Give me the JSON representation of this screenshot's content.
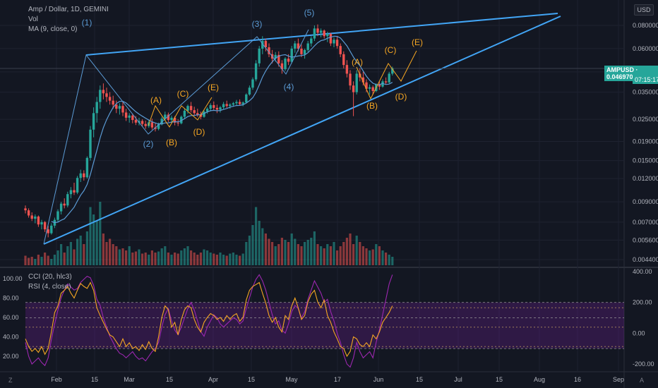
{
  "legend": {
    "main": "Amp / Dollar, 1D, GEMINI",
    "vol": "Vol",
    "ma": "MA (9, close, 0)",
    "cci": "CCI (20, hlc3)",
    "rsi": "RSI (4, close)"
  },
  "currency": "USD",
  "price_badge": {
    "symbol": "AMPUSD",
    "price": "0.046970",
    "timer": "07:15:17"
  },
  "corner_left": "Z",
  "corner_right": "A",
  "colors": {
    "bg": "#131722",
    "up": "#26a69a",
    "down": "#ef5350",
    "trendline": "#42a5f5",
    "wave_blue": "#5b9bd5",
    "wave_orange": "#f5a623",
    "ma": "#5b9bd5",
    "cci": "#9c27b0",
    "rsi": "#f5a623",
    "band": "#7b1fa2"
  },
  "chart_data": [
    {
      "type": "candlestick",
      "title": "Amp / Dollar, 1D, GEMINI",
      "y_scale": "log",
      "y_ticks": [
        "0.080000",
        "0.060000",
        "0.045000",
        "0.035000",
        "0.025000",
        "0.019000",
        "0.015000",
        "0.012000",
        "0.009000",
        "0.007000",
        "0.005600",
        "0.004400"
      ],
      "x_ticks": [
        "Feb",
        "15",
        "Mar",
        "15",
        "Apr",
        "15",
        "May",
        "17",
        "Jun",
        "15",
        "Jul",
        "15",
        "Aug",
        "16",
        "Sep"
      ],
      "last_price": 0.04697,
      "ma_period": 9,
      "ohlc": [
        [
          0.0083,
          0.0086,
          0.0078,
          0.0081
        ],
        [
          0.0081,
          0.0083,
          0.0074,
          0.0076
        ],
        [
          0.0076,
          0.0079,
          0.0071,
          0.0073
        ],
        [
          0.0073,
          0.0077,
          0.0069,
          0.0075
        ],
        [
          0.0075,
          0.0076,
          0.0066,
          0.0068
        ],
        [
          0.0068,
          0.0072,
          0.0064,
          0.007
        ],
        [
          0.007,
          0.0071,
          0.0062,
          0.0064
        ],
        [
          0.0064,
          0.0067,
          0.0058,
          0.0061
        ],
        [
          0.0061,
          0.0069,
          0.006,
          0.0067
        ],
        [
          0.0067,
          0.0074,
          0.0065,
          0.0072
        ],
        [
          0.0072,
          0.0082,
          0.007,
          0.008
        ],
        [
          0.008,
          0.009,
          0.0077,
          0.0088
        ],
        [
          0.0088,
          0.0094,
          0.0083,
          0.0086
        ],
        [
          0.0086,
          0.0102,
          0.0084,
          0.0099
        ],
        [
          0.0099,
          0.0108,
          0.0094,
          0.0104
        ],
        [
          0.0104,
          0.0114,
          0.0098,
          0.0101
        ],
        [
          0.0101,
          0.0124,
          0.0099,
          0.0121
        ],
        [
          0.0121,
          0.0134,
          0.0115,
          0.0128
        ],
        [
          0.0128,
          0.0133,
          0.0117,
          0.0122
        ],
        [
          0.0122,
          0.0158,
          0.012,
          0.0155
        ],
        [
          0.0155,
          0.023,
          0.015,
          0.022
        ],
        [
          0.022,
          0.029,
          0.02,
          0.027
        ],
        [
          0.027,
          0.033,
          0.024,
          0.031
        ],
        [
          0.031,
          0.038,
          0.0285,
          0.036
        ],
        [
          0.036,
          0.039,
          0.032,
          0.0345
        ],
        [
          0.0345,
          0.037,
          0.031,
          0.033
        ],
        [
          0.033,
          0.035,
          0.03,
          0.0315
        ],
        [
          0.0315,
          0.0335,
          0.0285,
          0.03
        ],
        [
          0.03,
          0.0315,
          0.027,
          0.0285
        ],
        [
          0.0285,
          0.0305,
          0.0265,
          0.0295
        ],
        [
          0.0295,
          0.031,
          0.026,
          0.0272
        ],
        [
          0.0272,
          0.0285,
          0.0245,
          0.0255
        ],
        [
          0.0255,
          0.027,
          0.024,
          0.0262
        ],
        [
          0.0262,
          0.0268,
          0.0238,
          0.0248
        ],
        [
          0.0248,
          0.026,
          0.0233,
          0.024
        ],
        [
          0.024,
          0.0255,
          0.0232,
          0.0245
        ],
        [
          0.0245,
          0.025,
          0.0228,
          0.0236
        ],
        [
          0.0236,
          0.0246,
          0.0222,
          0.023
        ],
        [
          0.023,
          0.0248,
          0.0225,
          0.0241
        ],
        [
          0.0241,
          0.0252,
          0.022,
          0.0226
        ],
        [
          0.0226,
          0.0238,
          0.0215,
          0.0222
        ],
        [
          0.0222,
          0.024,
          0.0218,
          0.0235
        ],
        [
          0.0235,
          0.0258,
          0.0232,
          0.0252
        ],
        [
          0.0252,
          0.0275,
          0.0245,
          0.0265
        ],
        [
          0.0265,
          0.0272,
          0.0242,
          0.0248
        ],
        [
          0.0248,
          0.0262,
          0.0238,
          0.0255
        ],
        [
          0.0255,
          0.026,
          0.0232,
          0.024
        ],
        [
          0.024,
          0.025,
          0.023,
          0.0238
        ],
        [
          0.0238,
          0.0262,
          0.0235,
          0.0258
        ],
        [
          0.0258,
          0.0285,
          0.0252,
          0.0278
        ],
        [
          0.0278,
          0.03,
          0.0268,
          0.0295
        ],
        [
          0.0295,
          0.031,
          0.0272,
          0.028
        ],
        [
          0.028,
          0.0292,
          0.0262,
          0.027
        ],
        [
          0.027,
          0.0285,
          0.0258,
          0.0265
        ],
        [
          0.0265,
          0.0275,
          0.025,
          0.0258
        ],
        [
          0.0258,
          0.028,
          0.0255,
          0.0275
        ],
        [
          0.0275,
          0.029,
          0.0268,
          0.0285
        ],
        [
          0.0285,
          0.0305,
          0.0276,
          0.0298
        ],
        [
          0.0298,
          0.0312,
          0.028,
          0.0288
        ],
        [
          0.0288,
          0.03,
          0.027,
          0.0282
        ],
        [
          0.0282,
          0.0295,
          0.0272,
          0.029
        ],
        [
          0.029,
          0.031,
          0.0283,
          0.0302
        ],
        [
          0.0302,
          0.0315,
          0.0288,
          0.0295
        ],
        [
          0.0295,
          0.0305,
          0.0285,
          0.03
        ],
        [
          0.03,
          0.031,
          0.0292,
          0.0305
        ],
        [
          0.0305,
          0.0318,
          0.0296,
          0.031
        ],
        [
          0.031,
          0.032,
          0.0298,
          0.0302
        ],
        [
          0.0302,
          0.0312,
          0.0294,
          0.0308
        ],
        [
          0.0308,
          0.0345,
          0.0305,
          0.034
        ],
        [
          0.034,
          0.038,
          0.0335,
          0.037
        ],
        [
          0.037,
          0.042,
          0.036,
          0.041
        ],
        [
          0.041,
          0.052,
          0.04,
          0.05
        ],
        [
          0.05,
          0.062,
          0.048,
          0.06
        ],
        [
          0.06,
          0.07,
          0.056,
          0.066
        ],
        [
          0.066,
          0.068,
          0.058,
          0.061
        ],
        [
          0.061,
          0.064,
          0.054,
          0.056
        ],
        [
          0.056,
          0.059,
          0.05,
          0.053
        ],
        [
          0.053,
          0.0575,
          0.051,
          0.0555
        ],
        [
          0.0555,
          0.058,
          0.048,
          0.05
        ],
        [
          0.05,
          0.052,
          0.044,
          0.0465
        ],
        [
          0.0465,
          0.054,
          0.0455,
          0.053
        ],
        [
          0.053,
          0.056,
          0.049,
          0.051
        ],
        [
          0.051,
          0.062,
          0.05,
          0.06
        ],
        [
          0.06,
          0.066,
          0.057,
          0.064
        ],
        [
          0.064,
          0.068,
          0.058,
          0.06
        ],
        [
          0.06,
          0.063,
          0.054,
          0.056
        ],
        [
          0.056,
          0.06,
          0.053,
          0.059
        ],
        [
          0.059,
          0.066,
          0.0575,
          0.064
        ],
        [
          0.064,
          0.07,
          0.0615,
          0.068
        ],
        [
          0.068,
          0.08,
          0.066,
          0.077
        ],
        [
          0.077,
          0.081,
          0.07,
          0.073
        ],
        [
          0.073,
          0.077,
          0.069,
          0.075
        ],
        [
          0.075,
          0.076,
          0.068,
          0.07
        ],
        [
          0.07,
          0.074,
          0.065,
          0.072
        ],
        [
          0.072,
          0.073,
          0.062,
          0.064
        ],
        [
          0.064,
          0.069,
          0.061,
          0.067
        ],
        [
          0.067,
          0.07,
          0.06,
          0.062
        ],
        [
          0.062,
          0.064,
          0.054,
          0.056
        ],
        [
          0.056,
          0.058,
          0.047,
          0.049
        ],
        [
          0.049,
          0.052,
          0.042,
          0.044
        ],
        [
          0.044,
          0.046,
          0.036,
          0.038
        ],
        [
          0.038,
          0.04,
          0.026,
          0.035
        ],
        [
          0.035,
          0.046,
          0.034,
          0.044
        ],
        [
          0.044,
          0.047,
          0.04,
          0.042
        ],
        [
          0.042,
          0.045,
          0.038,
          0.0395
        ],
        [
          0.0395,
          0.041,
          0.035,
          0.0365
        ],
        [
          0.0365,
          0.0385,
          0.034,
          0.0372
        ],
        [
          0.0372,
          0.038,
          0.034,
          0.0355
        ],
        [
          0.0355,
          0.039,
          0.035,
          0.0385
        ],
        [
          0.0385,
          0.04,
          0.036,
          0.0375
        ],
        [
          0.0375,
          0.041,
          0.037,
          0.04
        ],
        [
          0.04,
          0.042,
          0.0385,
          0.0395
        ],
        [
          0.0395,
          0.045,
          0.039,
          0.044
        ],
        [
          0.044,
          0.048,
          0.043,
          0.047
        ]
      ]
    },
    {
      "type": "bar",
      "title": "Vol",
      "values": [
        9,
        7,
        8,
        6,
        10,
        8,
        12,
        9,
        6,
        10,
        14,
        20,
        12,
        18,
        22,
        15,
        25,
        28,
        20,
        32,
        55,
        48,
        42,
        60,
        30,
        22,
        25,
        20,
        18,
        15,
        16,
        14,
        18,
        12,
        13,
        15,
        11,
        12,
        10,
        14,
        12,
        13,
        16,
        18,
        12,
        10,
        12,
        11,
        14,
        16,
        18,
        14,
        12,
        10,
        12,
        15,
        14,
        12,
        11,
        10,
        12,
        10,
        9,
        11,
        12,
        10,
        9,
        11,
        22,
        28,
        38,
        55,
        42,
        35,
        30,
        25,
        22,
        18,
        20,
        26,
        24,
        22,
        30,
        25,
        20,
        18,
        22,
        24,
        26,
        32,
        20,
        18,
        16,
        20,
        18,
        22,
        14,
        18,
        22,
        26,
        30,
        20,
        28,
        22,
        18,
        16,
        14,
        15,
        20,
        18,
        14,
        12,
        10,
        8
      ],
      "y_range": [
        0,
        100
      ]
    },
    {
      "type": "line",
      "title": "CCI (20, hlc3) / RSI (4, close)",
      "left_ticks": [
        "100.00",
        "80.00",
        "60.00",
        "40.00",
        "20.00"
      ],
      "right_ticks": [
        "400.00",
        "200.00",
        "0.00",
        "-200.00"
      ],
      "series": [
        {
          "name": "CCI (20, hlc3)",
          "values": [
            -60,
            -150,
            -200,
            -180,
            -160,
            -190,
            -210,
            -160,
            -40,
            60,
            150,
            230,
            280,
            320,
            300,
            280,
            290,
            330,
            350,
            370,
            360,
            310,
            220,
            180,
            100,
            40,
            -20,
            -60,
            -100,
            -130,
            -140,
            -160,
            -140,
            -120,
            -150,
            -170,
            -160,
            -180,
            -150,
            -120,
            -100,
            -60,
            40,
            120,
            160,
            80,
            20,
            -10,
            40,
            100,
            160,
            200,
            150,
            80,
            10,
            -20,
            40,
            80,
            120,
            100,
            60,
            40,
            60,
            80,
            100,
            90,
            60,
            80,
            160,
            230,
            300,
            350,
            380,
            340,
            280,
            200,
            120,
            60,
            80,
            20,
            0,
            60,
            140,
            180,
            160,
            100,
            140,
            220,
            280,
            340,
            300,
            260,
            200,
            220,
            140,
            80,
            0,
            -60,
            -140,
            -200,
            -220,
            -160,
            -60,
            -120,
            -160,
            -140,
            -120,
            -160,
            -60,
            20,
            120,
            220,
            320,
            380
          ]
        },
        {
          "name": "RSI (4, close)",
          "values": [
            38,
            30,
            25,
            28,
            24,
            30,
            22,
            28,
            45,
            65,
            72,
            85,
            88,
            92,
            85,
            80,
            88,
            95,
            92,
            90,
            96,
            88,
            70,
            62,
            55,
            48,
            42,
            40,
            35,
            30,
            38,
            30,
            34,
            28,
            30,
            26,
            32,
            27,
            35,
            28,
            25,
            40,
            60,
            72,
            68,
            50,
            55,
            42,
            58,
            68,
            72,
            70,
            58,
            50,
            45,
            55,
            60,
            64,
            62,
            58,
            60,
            56,
            62,
            58,
            62,
            64,
            56,
            60,
            78,
            88,
            92,
            94,
            96,
            85,
            75,
            62,
            55,
            60,
            50,
            45,
            62,
            58,
            72,
            80,
            70,
            58,
            62,
            76,
            84,
            88,
            76,
            70,
            78,
            62,
            55,
            45,
            38,
            30,
            28,
            20,
            25,
            40,
            38,
            32,
            30,
            34,
            30,
            42,
            38,
            45,
            55,
            60,
            65,
            72
          ]
        }
      ]
    }
  ],
  "annotations": {
    "waves_blue": [
      "(1)",
      "(2)",
      "(3)",
      "(4)",
      "(5)"
    ],
    "waves_orange": [
      "(A)",
      "(B)",
      "(C)",
      "(D)",
      "(E)",
      "(A)",
      "(B)",
      "(C)",
      "(D)",
      "(E)"
    ]
  }
}
